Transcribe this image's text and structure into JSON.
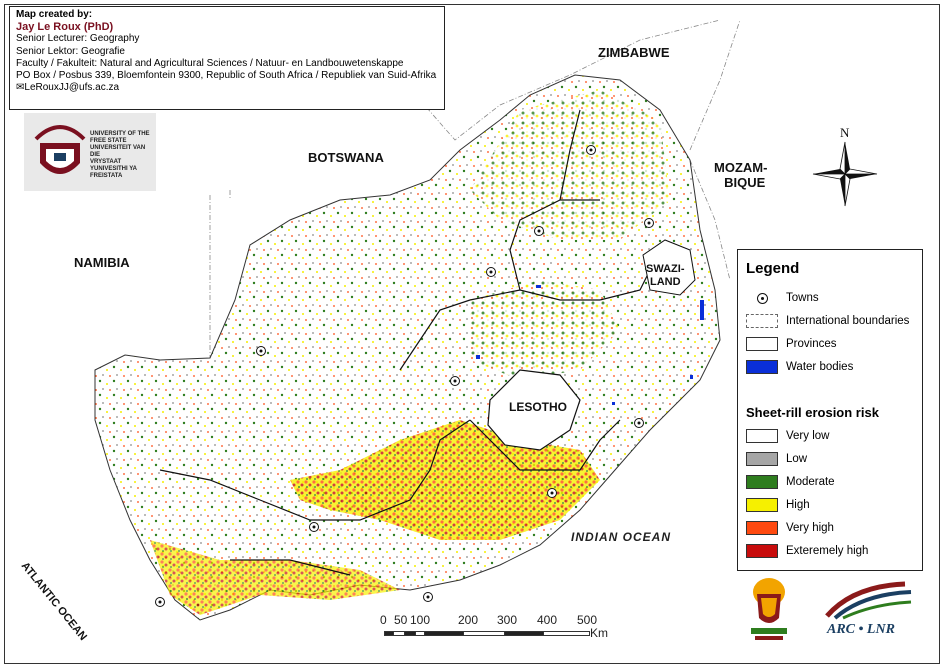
{
  "credit": {
    "header": "Map created by:",
    "author": "Jay Le Roux (PhD)",
    "lines": [
      "Senior Lecturer: Geography",
      "Senior Lektor: Geografie",
      "Faculty / Fakulteit: Natural and Agricultural Sciences / Natuur- en Landbouwetenskappe",
      "PO Box / Posbus 339, Bloemfontein 9300, Republic of South Africa / Republiek van Suid-Afrika",
      "LeRouxJJ@ufs.ac.za"
    ]
  },
  "ufs_logo": {
    "lines": [
      "UNIVERSITY OF THE",
      "FREE STATE",
      "UNIVERSITEIT VAN DIE",
      "VRYSTAAT",
      "YUNIVESITHI YA",
      "FREISTATA"
    ]
  },
  "places": {
    "zimbabwe": "ZIMBABWE",
    "botswana": "BOTSWANA",
    "namibia": "NAMIBIA",
    "mozambique_1": "MOZAM-",
    "mozambique_2": "BIQUE",
    "swaziland_1": "SWAZI-",
    "swaziland_2": "LAND",
    "lesotho": "LESOTHO",
    "indian_ocean": "INDIAN   OCEAN",
    "atlantic_ocean": "ATLANTIC OCEAN"
  },
  "north_label": "N",
  "legend": {
    "title": "Legend",
    "items": [
      {
        "label": "Towns",
        "kind": "towns"
      },
      {
        "label": "International boundaries",
        "kind": "intl",
        "color": "#ffffff"
      },
      {
        "label": "Provinces",
        "kind": "prov",
        "color": "#ffffff"
      },
      {
        "label": "Water bodies",
        "kind": "water",
        "color": "#0a2fd8"
      }
    ],
    "risk_title": "Sheet-rill erosion risk",
    "risk": [
      {
        "label": "Very low",
        "color": "#ffffff"
      },
      {
        "label": "Low",
        "color": "#a6a6a6"
      },
      {
        "label": "Moderate",
        "color": "#2e7d1e"
      },
      {
        "label": "High",
        "color": "#f6f000"
      },
      {
        "label": "Very high",
        "color": "#ff4a10"
      },
      {
        "label": "Exteremely high",
        "color": "#c80c0c"
      }
    ]
  },
  "scale": {
    "ticks": [
      "0",
      "50",
      "100",
      "200",
      "300",
      "400",
      "500"
    ],
    "unit": "Km"
  },
  "arc_logo": {
    "text": "ARC • LNR"
  }
}
